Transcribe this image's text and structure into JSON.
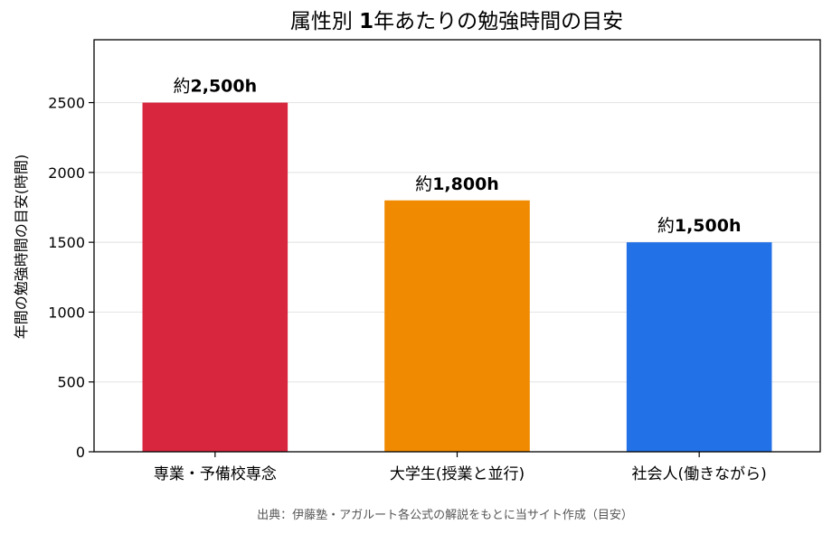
{
  "chart_data": {
    "type": "bar",
    "title": "属性別 1年あたりの勉強時間の目安",
    "title_parts": [
      "属性別 ",
      "1",
      "年あたりの勉強時間の目安"
    ],
    "xlabel": "",
    "ylabel": "年間の勉強時間の目安(時間)",
    "categories": [
      "専業・予備校専念",
      "大学生(授業と並行)",
      "社会人(働きながら)"
    ],
    "values": [
      2500,
      1800,
      1500
    ],
    "data_labels": [
      {
        "prefix": "約",
        "value": "2,500h"
      },
      {
        "prefix": "約",
        "value": "1,800h"
      },
      {
        "prefix": "約",
        "value": "1,500h"
      }
    ],
    "colors": [
      "#d7263d",
      "#f08a00",
      "#2271e6"
    ],
    "ylim": [
      0,
      2950
    ],
    "yticks": [
      0,
      500,
      1000,
      1500,
      2000,
      2500
    ],
    "grid": "horizontal",
    "source": "出典：伊藤塾・アガルート各公式の解説をもとに当サイト作成（目安）"
  }
}
